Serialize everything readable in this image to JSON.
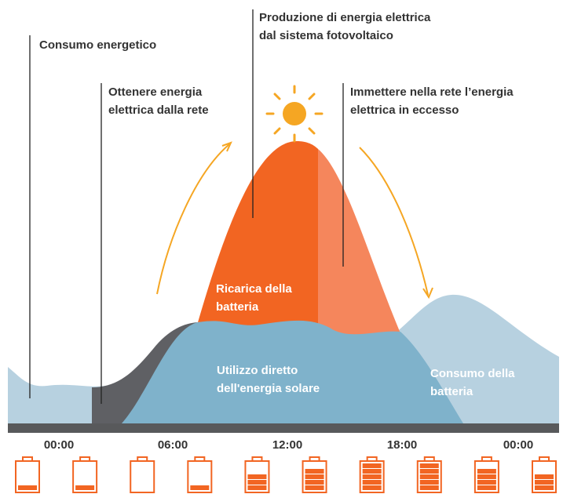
{
  "labels": {
    "consumption": [
      "Consumo energetico"
    ],
    "grid": [
      "Ottenere energia",
      "elettrica dalla rete"
    ],
    "production": [
      "Produzione di energia elettrica",
      "dal sistema fotovoltaico"
    ],
    "export": [
      "Immettere nella rete l’energia",
      "elettrica in eccesso"
    ],
    "charging": [
      "Ricarica della",
      "batteria"
    ],
    "direct": [
      "Utilizzo diretto",
      "dell'energia solare"
    ],
    "discharge": [
      "Consumo della",
      "batteria"
    ]
  },
  "times": [
    "00:00",
    "06:00",
    "12:00",
    "18:00",
    "00:00"
  ],
  "batteries": [
    1,
    1,
    0,
    1,
    3,
    4,
    5,
    5,
    4,
    3
  ]
}
